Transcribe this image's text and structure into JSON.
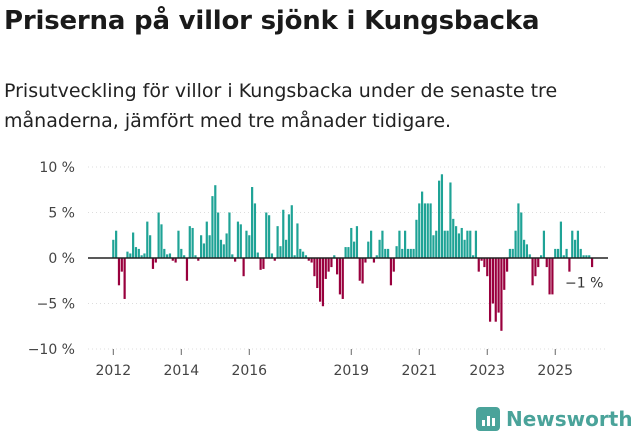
{
  "title": "Priserna på villor sjönk i Kungsbacka",
  "subtitle": "Prisutveckling för villor i Kungsbacka under de senaste tre månaderna, jämfört med tre månader tidigare.",
  "brand": "Newsworthy",
  "colors": {
    "positive": "#1fa396",
    "negative": "#99003d",
    "axis": "#222222",
    "brand": "#4aa39a"
  },
  "chart_data": {
    "type": "bar",
    "title": "Priserna på villor sjönk i Kungsbacka",
    "xlabel": "",
    "ylabel": "",
    "ylim": [
      -10,
      10
    ],
    "y_ticks": [
      10,
      5,
      0,
      -5,
      -10
    ],
    "y_tick_labels": [
      "10 %",
      "5 %",
      "0 %",
      "−5 %",
      "−10 %"
    ],
    "x_ticks": [
      2012,
      2014,
      2016,
      2019,
      2021,
      2023,
      2025
    ],
    "x_tick_labels": [
      "2012",
      "2014",
      "2016",
      "2019",
      "2021",
      "2023",
      "2025"
    ],
    "start": {
      "year": 2012,
      "month": 1
    },
    "frequency": "monthly",
    "last_value_label": "−1 %",
    "values": [
      2,
      3,
      -3,
      -1.5,
      -4.5,
      0.7,
      0.5,
      2.8,
      1.2,
      1,
      0.3,
      0.5,
      4,
      2.5,
      -1.2,
      -0.5,
      5,
      3.7,
      1,
      0.4,
      0.5,
      -0.3,
      -0.5,
      3,
      1,
      0.3,
      -2.5,
      3.5,
      3.3,
      0.3,
      -0.3,
      2.5,
      1.6,
      4,
      2.5,
      6.8,
      8,
      5,
      2,
      1.5,
      2.7,
      5,
      0.4,
      -0.4,
      4,
      3.7,
      -2,
      3,
      2.5,
      7.8,
      6,
      0.6,
      -1.3,
      -1.2,
      5,
      4.7,
      0.5,
      -0.3,
      3.5,
      1.3,
      5.3,
      2,
      4.8,
      5.8,
      0.3,
      3.8,
      1,
      0.7,
      0.3,
      -0.3,
      -0.5,
      -2,
      -3.3,
      -4.8,
      -5.3,
      -2.3,
      -1.5,
      -1,
      0.3,
      -1.8,
      -4,
      -4.5,
      1.2,
      1.2,
      3.3,
      1.8,
      3.5,
      -2.5,
      -2.8,
      -0.5,
      1.8,
      3,
      -0.5,
      0.3,
      2,
      3,
      1,
      1,
      -3,
      -1.5,
      1.3,
      3,
      1,
      3,
      1,
      1,
      1,
      4.2,
      6,
      7.3,
      6,
      6,
      6,
      2.5,
      3,
      8.5,
      9.2,
      3,
      3,
      8.3,
      4.3,
      3.5,
      2.7,
      3.3,
      2,
      3,
      3,
      0.3,
      3,
      -1.5,
      -0.3,
      -1,
      -2,
      -7,
      -5,
      -7,
      -6,
      -8,
      -3.5,
      -1.5,
      1,
      1,
      3,
      6,
      5,
      2,
      1.5,
      0.4,
      -3,
      -2,
      -1,
      0.3,
      3,
      -1,
      -4,
      -4,
      1,
      1,
      4,
      0.3,
      1,
      -1.5,
      3,
      2,
      3,
      1,
      0.3,
      0.3,
      0.3,
      -1
    ]
  }
}
